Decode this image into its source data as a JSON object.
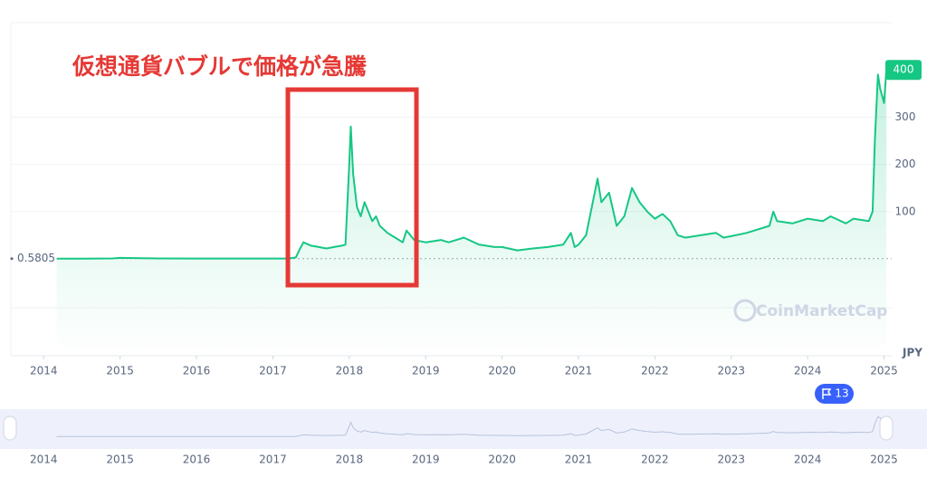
{
  "chart_data": {
    "type": "line",
    "annotation": "仮想通貨バブルで価格が急騰",
    "x": [
      2014.17,
      2014.5,
      2014.9,
      2015.0,
      2015.5,
      2016.0,
      2016.5,
      2017.0,
      2017.2,
      2017.3,
      2017.35,
      2017.4,
      2017.5,
      2017.6,
      2017.7,
      2017.8,
      2017.9,
      2017.95,
      2018.0,
      2018.02,
      2018.05,
      2018.1,
      2018.15,
      2018.2,
      2018.3,
      2018.35,
      2018.4,
      2018.5,
      2018.6,
      2018.7,
      2018.75,
      2018.85,
      2019.0,
      2019.2,
      2019.3,
      2019.5,
      2019.7,
      2019.9,
      2020.0,
      2020.2,
      2020.4,
      2020.6,
      2020.8,
      2020.9,
      2020.95,
      2021.0,
      2021.1,
      2021.25,
      2021.3,
      2021.4,
      2021.5,
      2021.6,
      2021.7,
      2021.8,
      2021.9,
      2022.0,
      2022.1,
      2022.2,
      2022.3,
      2022.4,
      2022.6,
      2022.8,
      2022.9,
      2023.0,
      2023.2,
      2023.5,
      2023.55,
      2023.6,
      2023.8,
      2024.0,
      2024.2,
      2024.3,
      2024.5,
      2024.6,
      2024.8,
      2024.85,
      2024.88,
      2024.92,
      2024.95,
      2025.0,
      2025.03
    ],
    "values": [
      0.58,
      0.6,
      1.0,
      2,
      1.0,
      0.8,
      0.8,
      0.7,
      0.8,
      3,
      20,
      35,
      28,
      25,
      22,
      25,
      28,
      30,
      200,
      280,
      180,
      110,
      90,
      120,
      80,
      90,
      70,
      55,
      45,
      35,
      60,
      40,
      35,
      40,
      35,
      45,
      30,
      25,
      25,
      18,
      22,
      25,
      30,
      55,
      25,
      30,
      50,
      170,
      120,
      140,
      70,
      90,
      150,
      120,
      100,
      85,
      95,
      80,
      50,
      45,
      50,
      55,
      45,
      48,
      55,
      70,
      100,
      80,
      75,
      85,
      80,
      90,
      75,
      85,
      80,
      100,
      250,
      390,
      360,
      330,
      400
    ],
    "color": "#16c784",
    "xlim": [
      2013.57,
      2025.1
    ],
    "xticks": [
      2014,
      2015,
      2016,
      2017,
      2018,
      2019,
      2020,
      2021,
      2022,
      2023,
      2024,
      2025
    ],
    "ylim": [
      -205,
      500
    ],
    "yticks": [
      100,
      200,
      300
    ],
    "grid": true,
    "baseline": 0.5805,
    "last_price": 400,
    "currency": "JPY",
    "watermark": "CoinMarketCap",
    "flag_count": 13
  }
}
